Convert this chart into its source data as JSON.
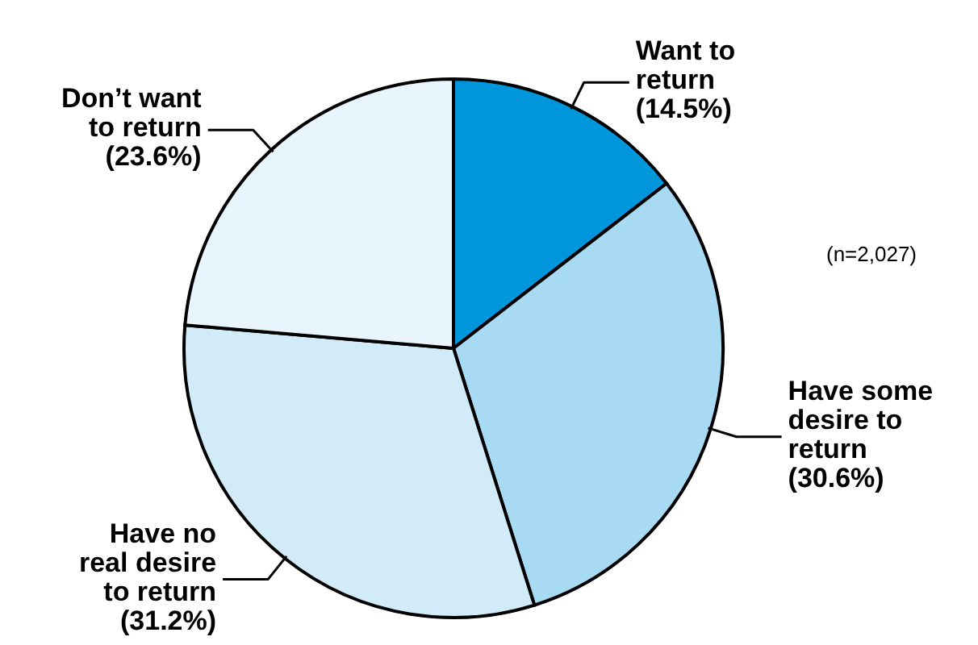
{
  "chart_data": {
    "type": "pie",
    "categories": [
      "Want to return",
      "Have some desire to return",
      "Have no real desire to return",
      "Don’t want to return"
    ],
    "values": [
      14.5,
      30.6,
      31.2,
      23.6
    ],
    "colors": [
      "#0096dc",
      "#a8daf4",
      "#d2ebf8",
      "#e8f5fc"
    ],
    "value_labels": [
      "(14.5%)",
      "(30.6%)",
      "(31.2%)",
      "(23.6%)"
    ],
    "annotations": [
      "(n=2,027)"
    ]
  }
}
